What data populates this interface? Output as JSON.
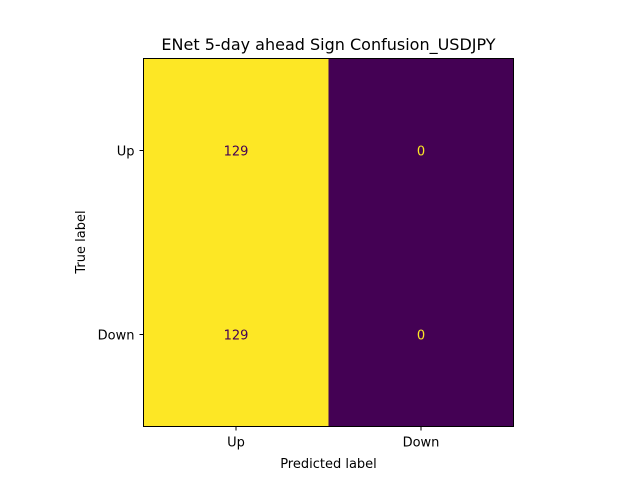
{
  "chart_data": {
    "type": "heatmap",
    "title": "ENet 5-day ahead Sign Confusion_USDJPY",
    "xlabel": "Predicted label",
    "ylabel": "True label",
    "x_categories": [
      "Up",
      "Down"
    ],
    "y_categories": [
      "Up",
      "Down"
    ],
    "values": [
      [
        129,
        0
      ],
      [
        129,
        0
      ]
    ],
    "colormap": "viridis",
    "color_range": [
      0,
      129
    ],
    "colors": {
      "high": "#fde725",
      "low": "#440154",
      "text_on_high": "#440154",
      "text_on_low": "#fde725"
    },
    "grid": false,
    "colorbar": false
  }
}
